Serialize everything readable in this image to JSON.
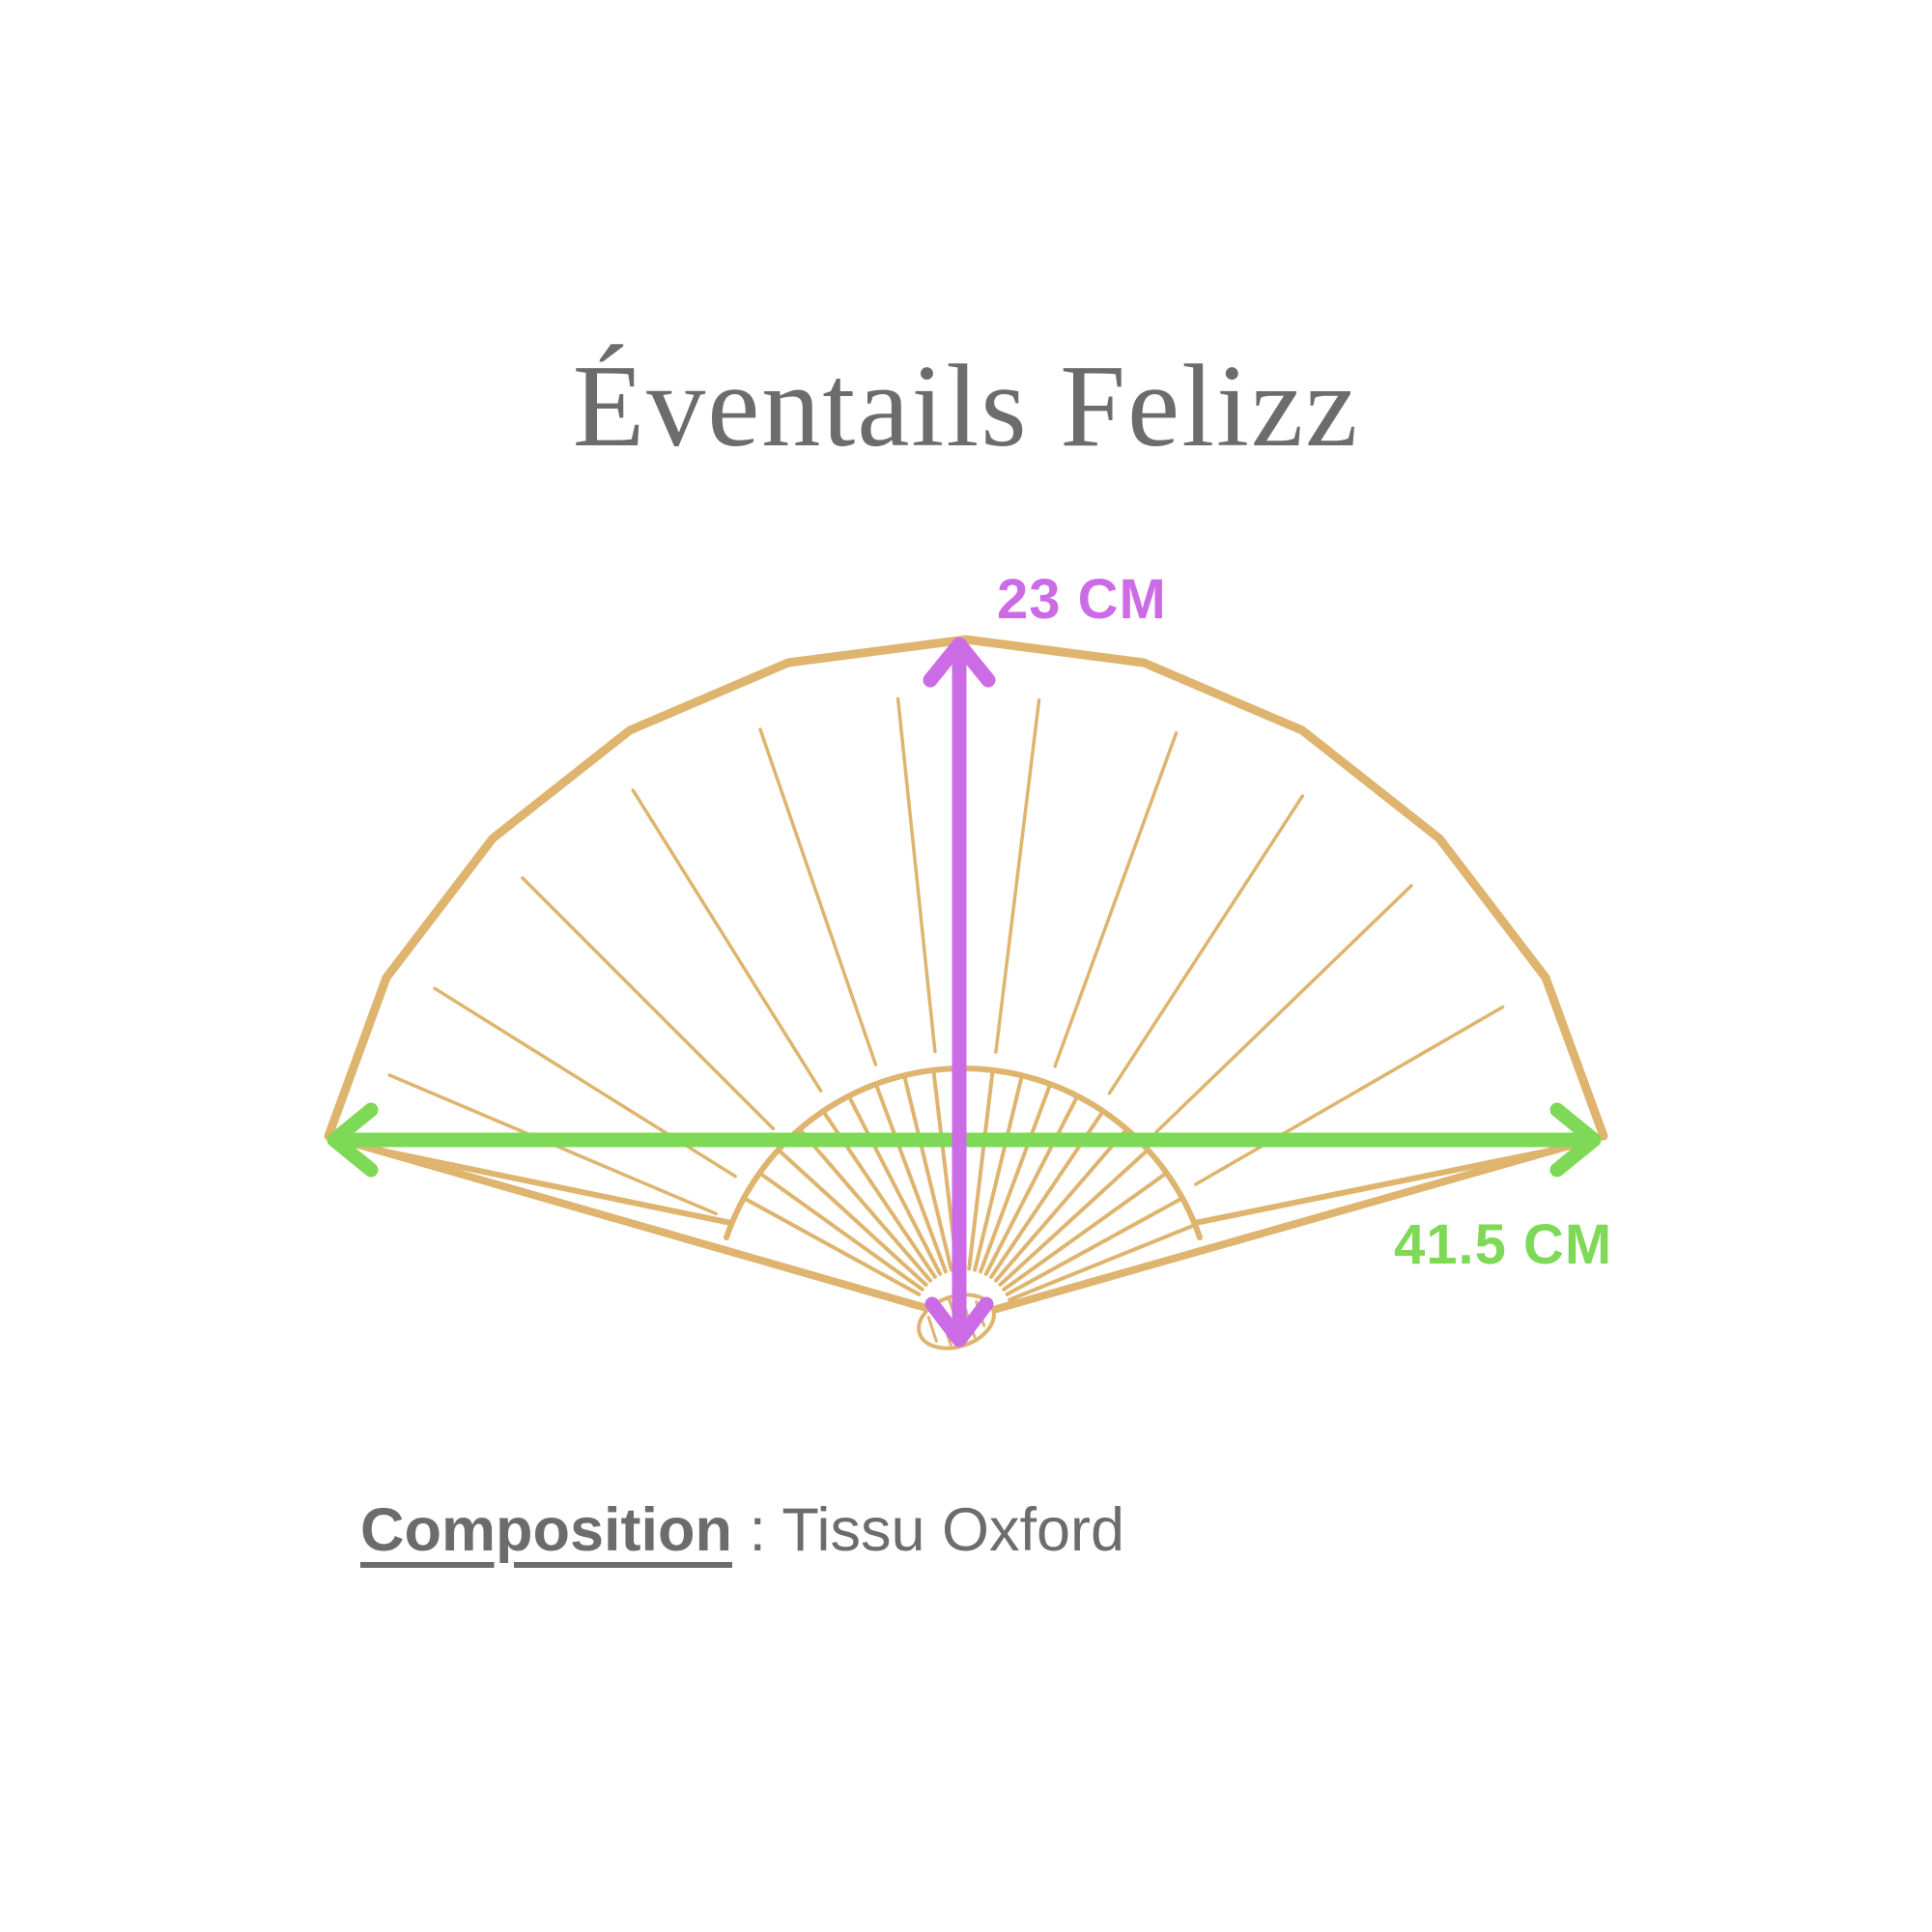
{
  "colors": {
    "background": "#FFFFFF",
    "fan_gold": "#DEB46E",
    "accent_purple": "#CB6CE6",
    "accent_green": "#7ED957",
    "text_gray": "#6C6C6C"
  },
  "title": {
    "text": "Éventails Felizz"
  },
  "dimensions": {
    "height": {
      "label": "23 CM",
      "value_cm": 23
    },
    "width": {
      "label": "41.5 CM",
      "value_cm": 41.5
    }
  },
  "composition": {
    "label": "Composition",
    "separator": " : ",
    "value": "Tissu Oxford"
  }
}
